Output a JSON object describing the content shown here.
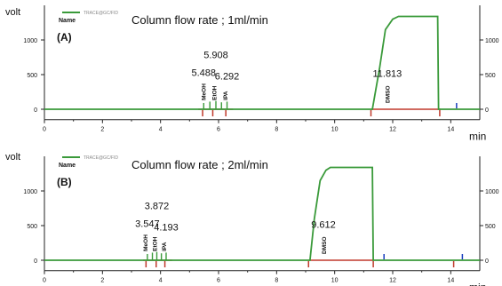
{
  "chart_data": [
    {
      "type": "line",
      "panel_label": "(A)",
      "title": "Column flow rate ; 1ml/min",
      "legend": {
        "line_label": "TRACE@GC/FID",
        "name_label": "Name"
      },
      "ylabel": "volt",
      "xlabel": "min",
      "xlim": [
        0,
        15
      ],
      "ylim": [
        -150,
        1500
      ],
      "xticks": [
        0,
        2,
        4,
        6,
        8,
        10,
        12,
        14
      ],
      "yticks": [
        0,
        500,
        1000
      ],
      "right_yticks": [
        0,
        500,
        1000
      ],
      "trace": {
        "x": [
          0,
          11.3,
          11.55,
          11.75,
          12.0,
          12.2,
          13.55,
          13.58,
          15
        ],
        "y": [
          0,
          0,
          600,
          1150,
          1300,
          1340,
          1340,
          0,
          0
        ]
      },
      "small_peaks": [
        {
          "x": 5.488,
          "height": 90
        },
        {
          "x": 5.7,
          "height": 110
        },
        {
          "x": 5.908,
          "height": 120
        },
        {
          "x": 6.1,
          "height": 100
        },
        {
          "x": 6.292,
          "height": 110
        }
      ],
      "peak_labels": [
        {
          "text": "5.488",
          "x": 5.488,
          "y": 480
        },
        {
          "text": "5.908",
          "x": 5.908,
          "y": 740
        },
        {
          "text": "6.292",
          "x": 6.292,
          "y": 430
        },
        {
          "text": "11.813",
          "x": 11.813,
          "y": 470
        }
      ],
      "compound_labels": [
        {
          "text": "MeOH",
          "x": 5.55,
          "y": 130
        },
        {
          "text": "EtOH",
          "x": 5.92,
          "y": 130
        },
        {
          "text": "IPA",
          "x": 6.3,
          "y": 130
        },
        {
          "text": "DMSO",
          "x": 11.9,
          "y": 90
        }
      ],
      "baseline_segments": [
        [
          5.3,
          6.5
        ],
        [
          11.25,
          13.65
        ]
      ],
      "red_markers": [
        5.45,
        5.8,
        6.25,
        11.25,
        13.62
      ],
      "blue_markers": [
        14.2
      ]
    },
    {
      "type": "line",
      "panel_label": "(B)",
      "title": "Column flow rate ; 2ml/min",
      "legend": {
        "line_label": "TRACE@GC/FID",
        "name_label": "Name"
      },
      "ylabel": "volt",
      "xlabel": "min",
      "xlim": [
        0,
        15
      ],
      "ylim": [
        -150,
        1500
      ],
      "xticks": [
        0,
        2,
        4,
        6,
        8,
        10,
        12,
        14
      ],
      "yticks": [
        0,
        500,
        1000
      ],
      "right_yticks": [
        0,
        500,
        1000
      ],
      "trace": {
        "x": [
          0,
          9.15,
          9.3,
          9.5,
          9.7,
          9.85,
          11.3,
          11.33,
          15
        ],
        "y": [
          0,
          0,
          600,
          1150,
          1300,
          1340,
          1340,
          0,
          0
        ]
      },
      "small_peaks": [
        {
          "x": 3.547,
          "height": 90
        },
        {
          "x": 3.72,
          "height": 110
        },
        {
          "x": 3.872,
          "height": 120
        },
        {
          "x": 4.03,
          "height": 100
        },
        {
          "x": 4.193,
          "height": 110
        }
      ],
      "peak_labels": [
        {
          "text": "3.547",
          "x": 3.547,
          "y": 480
        },
        {
          "text": "3.872",
          "x": 3.872,
          "y": 740
        },
        {
          "text": "4.193",
          "x": 4.193,
          "y": 430
        },
        {
          "text": "9.612",
          "x": 9.612,
          "y": 470
        }
      ],
      "compound_labels": [
        {
          "text": "MeOH",
          "x": 3.55,
          "y": 130
        },
        {
          "text": "EtOH",
          "x": 3.88,
          "y": 130
        },
        {
          "text": "IPA",
          "x": 4.2,
          "y": 130
        },
        {
          "text": "DMSO",
          "x": 9.7,
          "y": 90
        }
      ],
      "baseline_segments": [
        [
          3.4,
          4.4
        ],
        [
          9.1,
          11.35
        ]
      ],
      "red_markers": [
        3.5,
        3.85,
        4.15,
        9.1,
        11.33,
        14.1
      ],
      "blue_markers": [
        11.7,
        14.4
      ]
    }
  ],
  "colors": {
    "trace": "#3a9a3a",
    "segment": "#c0392b",
    "blue_marker": "#1a3fbf",
    "axis": "#222222",
    "legend_line": "#3a9a3a"
  }
}
